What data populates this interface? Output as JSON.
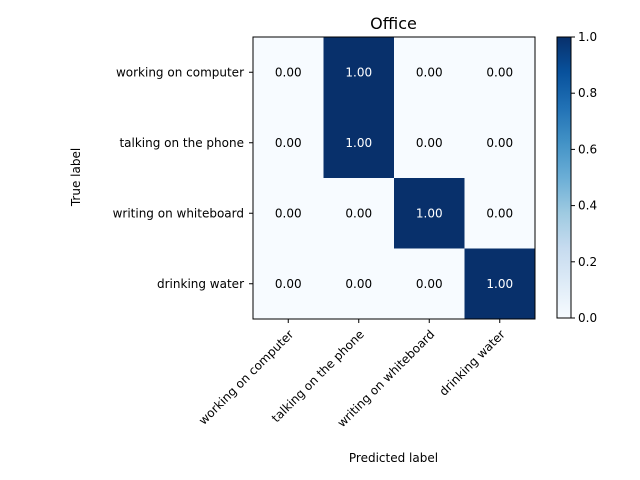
{
  "chart_data": {
    "type": "heatmap",
    "title": "Office",
    "xlabel": "Predicted label",
    "ylabel": "True label",
    "rows": [
      "working on computer",
      "talking on the phone",
      "writing on whiteboard",
      "drinking water"
    ],
    "cols": [
      "working on computer",
      "talking on the phone",
      "writing on whiteboard",
      "drinking water"
    ],
    "values": [
      [
        0.0,
        1.0,
        0.0,
        0.0
      ],
      [
        0.0,
        1.0,
        0.0,
        0.0
      ],
      [
        0.0,
        0.0,
        1.0,
        0.0
      ],
      [
        0.0,
        0.0,
        0.0,
        1.0
      ]
    ],
    "value_labels": [
      [
        "0.00",
        "1.00",
        "0.00",
        "0.00"
      ],
      [
        "0.00",
        "1.00",
        "0.00",
        "0.00"
      ],
      [
        "0.00",
        "0.00",
        "1.00",
        "0.00"
      ],
      [
        "0.00",
        "0.00",
        "0.00",
        "1.00"
      ]
    ],
    "colorbar": {
      "range": [
        0.0,
        1.0
      ],
      "ticks": [
        0.0,
        0.2,
        0.4,
        0.6,
        0.8,
        1.0
      ],
      "tick_labels": [
        "0.0",
        "0.2",
        "0.4",
        "0.6",
        "0.8",
        "1.0"
      ],
      "colormap": "Blues",
      "low_color": "#f7fbff",
      "high_color": "#08306b"
    }
  }
}
